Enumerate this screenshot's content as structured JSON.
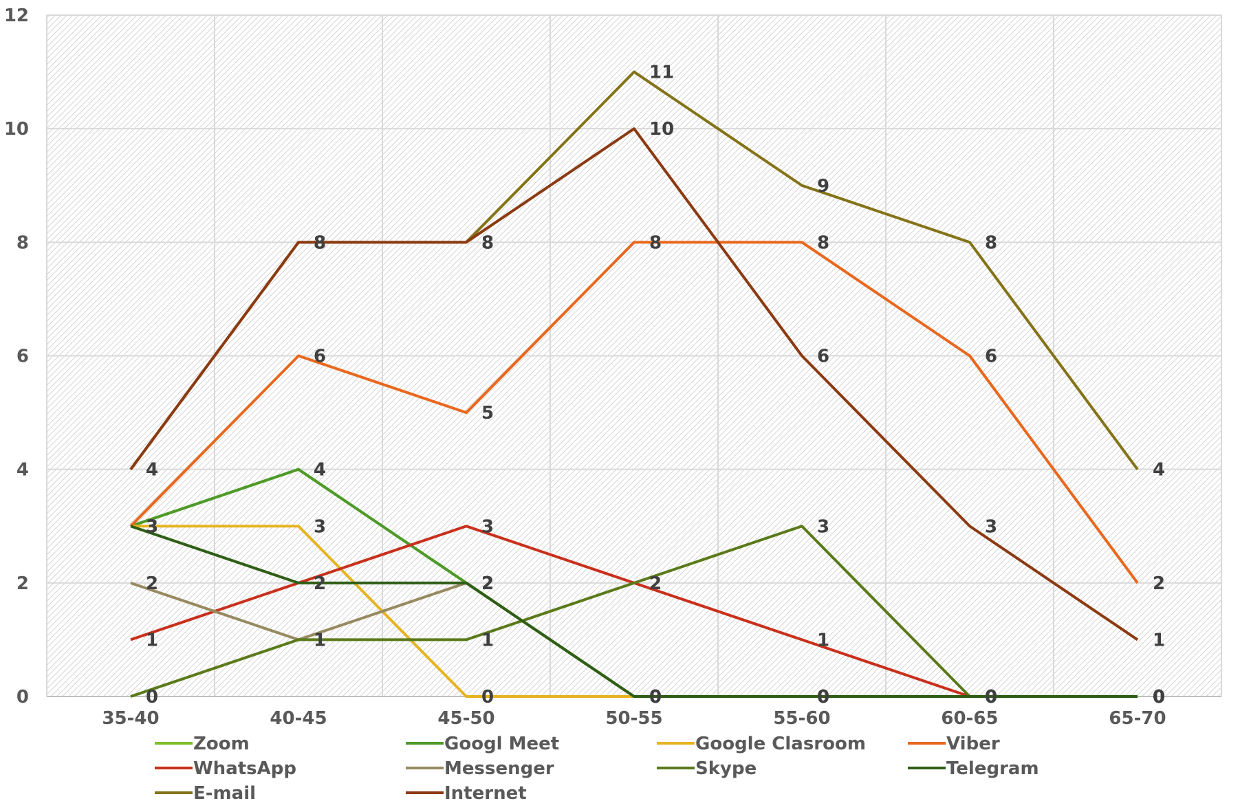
{
  "chart_data": {
    "type": "line",
    "title": "",
    "xlabel": "",
    "ylabel": "",
    "categories": [
      "35-40",
      "40-45",
      "45-50",
      "50-55",
      "55-60",
      "60-65",
      "65-70"
    ],
    "ylim": [
      0,
      12
    ],
    "yticks": [
      "0",
      "2",
      "4",
      "6",
      "8",
      "10",
      "12"
    ],
    "grid": "on",
    "legend": "bottom",
    "series": [
      {
        "name": "Zoom",
        "color": "#7dbf2a",
        "values": [
          3,
          4,
          2,
          0,
          0,
          0,
          0
        ]
      },
      {
        "name": "Googl Meet",
        "color": "#4e9a2a",
        "values": [
          3,
          4,
          2,
          0,
          0,
          0,
          0
        ]
      },
      {
        "name": "Google Clasroom",
        "color": "#e6b422",
        "values": [
          3,
          3,
          0,
          0,
          0,
          0,
          0
        ]
      },
      {
        "name": "Viber",
        "color": "#e8681e",
        "values": [
          3,
          6,
          5,
          8,
          8,
          6,
          2
        ]
      },
      {
        "name": "WhatsApp",
        "color": "#c8301c",
        "values": [
          1,
          2,
          3,
          2,
          1,
          0,
          0
        ]
      },
      {
        "name": "Messenger",
        "color": "#978a60",
        "values": [
          2,
          1,
          2,
          0,
          0,
          0,
          0
        ]
      },
      {
        "name": "Skype",
        "color": "#5a7a1a",
        "values": [
          0,
          1,
          1,
          2,
          3,
          0,
          0
        ]
      },
      {
        "name": "Telegram",
        "color": "#2f5e16",
        "values": [
          3,
          2,
          2,
          0,
          0,
          0,
          0
        ]
      },
      {
        "name": "E-mail",
        "color": "#847318",
        "values": [
          4,
          8,
          8,
          11,
          9,
          8,
          4
        ]
      },
      {
        "name": "Internet",
        "color": "#8b3a12",
        "values": [
          4,
          8,
          8,
          10,
          6,
          3,
          1
        ]
      }
    ]
  }
}
